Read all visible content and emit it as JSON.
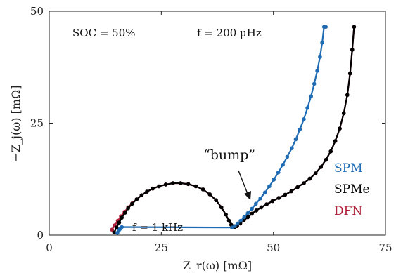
{
  "chart_data": {
    "type": "line",
    "xlabel": "Z_r(ω) [mΩ]",
    "ylabel": "−Z_j(ω) [mΩ]",
    "xlim": [
      0,
      75
    ],
    "ylim": [
      0,
      50
    ],
    "xticks": [
      0,
      25,
      50,
      75
    ],
    "yticks": [
      0,
      25,
      50
    ],
    "xtick_labels": [
      "0",
      "25",
      "50",
      "75"
    ],
    "ytick_labels": [
      "0",
      "25",
      "50"
    ],
    "grid": false,
    "legend_position": "right",
    "annotations": {
      "soc": "SOC = 50%",
      "freq_low": "f = 200 μHz",
      "freq_high": "f = 1 kHz",
      "bump": "“bump”"
    },
    "colors": {
      "SPM": "#1f6cb4",
      "SPMe": "#000000",
      "DFN": "#b0203a"
    },
    "series": [
      {
        "name": "DFN",
        "x": [
          14.0,
          14.6,
          15.3,
          16.0,
          16.8,
          17.6,
          18.5,
          19.5,
          20.6,
          21.8,
          23.1,
          24.5,
          26.0,
          27.6,
          29.3,
          31.0,
          32.7,
          34.3,
          35.8,
          37.2,
          38.4,
          39.4,
          40.1,
          40.6,
          40.9,
          41.3,
          41.9,
          42.6,
          43.4,
          44.3,
          45.2,
          46.2,
          47.3,
          48.5,
          49.8,
          51.2,
          52.6,
          54.0,
          55.4,
          56.8,
          58.1,
          59.4,
          60.6,
          61.7,
          62.8,
          63.8,
          64.8,
          65.7,
          66.5,
          67.1,
          67.6,
          68.0
        ],
        "y": [
          1.2,
          2.2,
          3.2,
          4.2,
          5.2,
          6.2,
          7.1,
          8.0,
          8.9,
          9.7,
          10.4,
          10.9,
          11.3,
          11.6,
          11.6,
          11.4,
          10.9,
          10.2,
          9.1,
          7.8,
          6.2,
          4.6,
          3.2,
          2.3,
          1.8,
          1.7,
          2.0,
          2.6,
          3.3,
          4.0,
          4.8,
          5.5,
          6.2,
          6.9,
          7.6,
          8.3,
          9.0,
          9.8,
          10.7,
          11.6,
          12.6,
          13.8,
          15.2,
          16.8,
          18.7,
          21.0,
          23.8,
          27.2,
          31.3,
          36.1,
          41.4,
          46.5
        ]
      },
      {
        "name": "SPMe",
        "x": [
          14.5,
          15.0,
          15.6,
          16.2,
          16.9,
          17.6,
          18.5,
          19.5,
          20.6,
          21.8,
          23.1,
          24.5,
          26.0,
          27.6,
          29.3,
          31.0,
          32.7,
          34.3,
          35.8,
          37.2,
          38.4,
          39.4,
          40.1,
          40.6,
          40.9,
          41.3,
          41.9,
          42.6,
          43.4,
          44.3,
          45.2,
          46.2,
          47.3,
          48.5,
          49.8,
          51.2,
          52.6,
          54.0,
          55.4,
          56.8,
          58.1,
          59.4,
          60.6,
          61.7,
          62.8,
          63.8,
          64.8,
          65.7,
          66.5,
          67.1,
          67.6,
          68.0
        ],
        "y": [
          0.6,
          1.7,
          2.8,
          3.9,
          5.0,
          6.0,
          7.0,
          8.0,
          8.9,
          9.7,
          10.4,
          10.9,
          11.3,
          11.6,
          11.6,
          11.4,
          10.9,
          10.2,
          9.1,
          7.8,
          6.2,
          4.6,
          3.2,
          2.3,
          1.8,
          1.7,
          2.0,
          2.6,
          3.3,
          4.0,
          4.8,
          5.5,
          6.2,
          6.9,
          7.6,
          8.3,
          9.0,
          9.8,
          10.7,
          11.6,
          12.6,
          13.8,
          15.2,
          16.8,
          18.7,
          21.0,
          23.8,
          27.2,
          31.3,
          36.1,
          41.4,
          46.5
        ]
      },
      {
        "name": "SPM",
        "x": [
          15.2,
          15.5,
          15.8,
          16.2,
          40.8,
          41.4,
          42.0,
          42.7,
          43.5,
          44.3,
          45.2,
          46.1,
          47.1,
          48.1,
          49.1,
          50.1,
          51.1,
          52.1,
          53.1,
          54.1,
          55.0,
          55.9,
          56.8,
          57.6,
          58.4,
          59.1,
          59.8,
          60.4,
          60.9,
          61.3,
          61.7
        ],
        "y": [
          0.5,
          1.0,
          1.4,
          1.8,
          1.7,
          2.0,
          2.6,
          3.2,
          4.0,
          4.9,
          5.9,
          7.0,
          8.2,
          9.5,
          10.9,
          12.4,
          14.0,
          15.7,
          17.5,
          19.4,
          21.4,
          23.6,
          25.9,
          28.4,
          31.0,
          33.8,
          36.7,
          39.8,
          43.0,
          46.5,
          46.5
        ]
      }
    ]
  }
}
